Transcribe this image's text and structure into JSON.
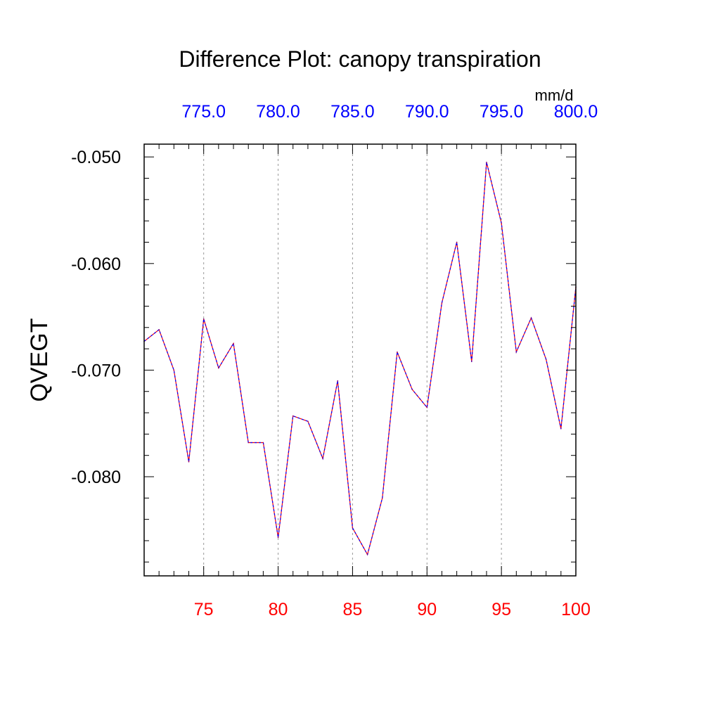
{
  "chart_data": {
    "type": "line",
    "title": "Difference Plot: canopy transpiration",
    "ylabel": "QVEGT",
    "units_label": "mm/d",
    "bottom_axis": {
      "ticks": [
        75,
        80,
        85,
        90,
        95,
        100
      ],
      "tick_labels": [
        "75",
        "80",
        "85",
        "90",
        "95",
        "100"
      ],
      "color": "#ff0000"
    },
    "top_axis": {
      "tick_labels": [
        "775.0",
        "780.0",
        "785.0",
        "790.0",
        "795.0",
        "800.0"
      ],
      "color": "#0000ff"
    },
    "left_axis": {
      "ticks": [
        -0.05,
        -0.06,
        -0.07,
        -0.08
      ],
      "tick_labels": [
        "-0.050",
        "-0.060",
        "-0.070",
        "-0.080"
      ]
    },
    "xlim": [
      71,
      100
    ],
    "ylim": [
      -0.0893,
      -0.0488
    ],
    "grid": "vertical dashed at major x ticks",
    "line_colors": [
      "#ff0000",
      "#0000ff"
    ],
    "x": [
      71,
      72,
      73,
      74,
      75,
      76,
      77,
      78,
      79,
      80,
      81,
      82,
      83,
      84,
      85,
      86,
      87,
      88,
      89,
      90,
      91,
      92,
      93,
      94,
      95,
      96,
      97,
      98,
      99,
      100
    ],
    "values": [
      -0.0673,
      -0.0662,
      -0.07,
      -0.0786,
      -0.0652,
      -0.0698,
      -0.0675,
      -0.0768,
      -0.0768,
      -0.0857,
      -0.0743,
      -0.0748,
      -0.0783,
      -0.071,
      -0.0848,
      -0.0873,
      -0.082,
      -0.0683,
      -0.0718,
      -0.0735,
      -0.0637,
      -0.058,
      -0.0692,
      -0.0505,
      -0.0562,
      -0.0683,
      -0.0651,
      -0.069,
      -0.0755,
      -0.0622
    ]
  }
}
